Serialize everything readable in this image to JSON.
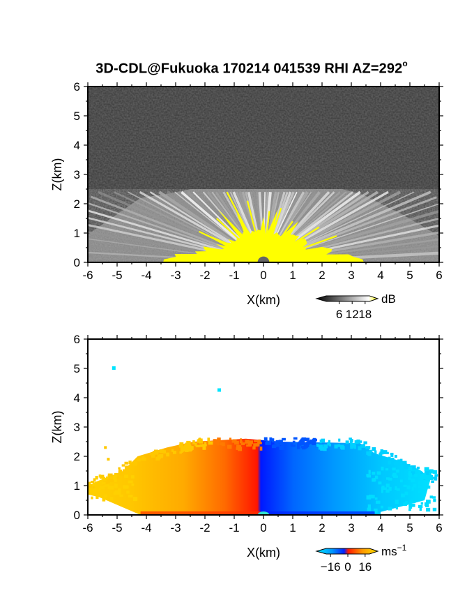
{
  "title": "3D-CDL@Fukuoka 170214 041539 RHI AZ=292",
  "title_degree": "o",
  "colors": {
    "background": "#ffffff",
    "yellow": "#ffff00",
    "doppler_far_neg": "#00e5ff",
    "doppler_neg": "#0033ff",
    "doppler_zero": "#ff1a00",
    "doppler_pos": "#ffcc00"
  },
  "chart_data": [
    {
      "type": "heatmap",
      "quantity": "SNR",
      "xlabel": "X(km)",
      "ylabel": "Z(km)",
      "xlim": [
        -6,
        6
      ],
      "ylim": [
        0,
        6
      ],
      "xticks": [
        "-6",
        "-5",
        "-4",
        "-3",
        "-2",
        "-1",
        "0",
        "1",
        "2",
        "3",
        "4",
        "5",
        "6"
      ],
      "yticks": [
        "0",
        "1",
        "2",
        "3",
        "4",
        "5",
        "6"
      ],
      "colorbar": {
        "unit": "dB",
        "ticks": [
          "6",
          "12",
          "18"
        ],
        "tick_values": [
          6,
          12,
          18
        ],
        "range": [
          0,
          20
        ]
      },
      "echo_top_km": 2.5,
      "saturated_region_top_km": 1.3
    },
    {
      "type": "heatmap",
      "quantity": "Doppler velocity",
      "xlabel": "X(km)",
      "ylabel": "Z(km)",
      "xlim": [
        -6,
        6
      ],
      "ylim": [
        0,
        6
      ],
      "xticks": [
        "-6",
        "-5",
        "-4",
        "-3",
        "-2",
        "-1",
        "0",
        "1",
        "2",
        "3",
        "4",
        "5",
        "6"
      ],
      "yticks": [
        "0",
        "1",
        "2",
        "3",
        "4",
        "5",
        "6"
      ],
      "colorbar": {
        "unit": "ms",
        "unit_exponent": "−1",
        "ticks": [
          "−16",
          "0",
          "16"
        ],
        "tick_values": [
          -16,
          0,
          16
        ],
        "range": [
          -20,
          20
        ]
      },
      "echo_top_km": 2.5,
      "isolated_echoes": [
        {
          "x": -5.1,
          "z": 5.0
        },
        {
          "x": -1.5,
          "z": 4.25
        }
      ]
    }
  ]
}
